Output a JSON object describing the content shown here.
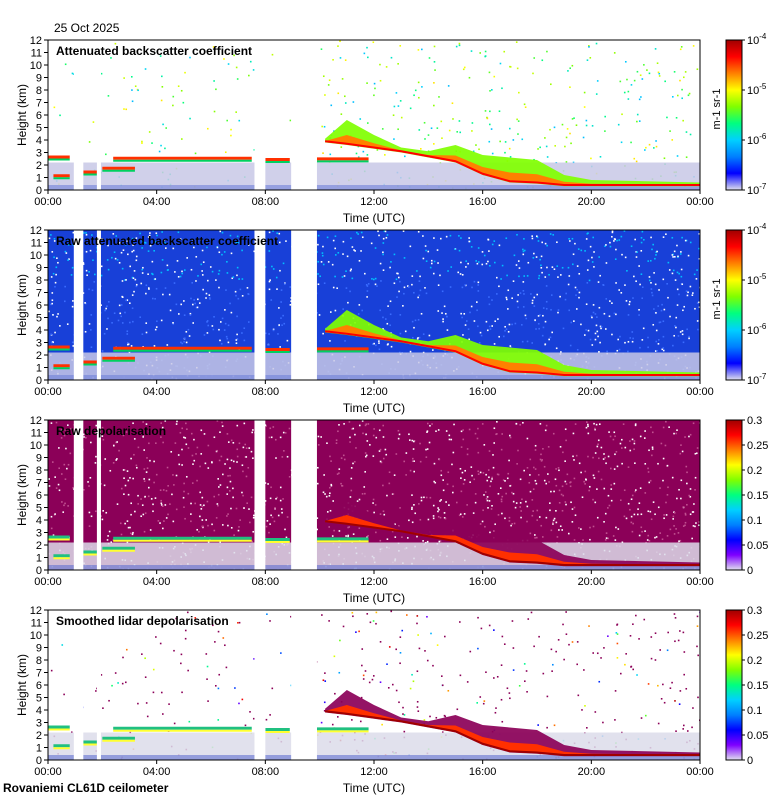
{
  "header": {
    "date": "25 Oct 2025",
    "site": "Rovaniemi CL61D ceilometer"
  },
  "chart_data": [
    {
      "type": "heatmap",
      "title": "Attenuated backscatter coefficient",
      "xlabel": "Time (UTC)",
      "ylabel": "Height (km)",
      "xticks": [
        "00:00",
        "04:00",
        "08:00",
        "12:00",
        "16:00",
        "20:00",
        "00:00"
      ],
      "yticks": [
        0,
        1,
        2,
        3,
        4,
        5,
        6,
        7,
        8,
        9,
        10,
        11,
        12
      ],
      "ylim": [
        0,
        12
      ],
      "colorbar": {
        "scale": "log",
        "ticks": [
          "10^-7",
          "10^-6",
          "10^-5",
          "10^-4"
        ],
        "units": "m-1 sr-1"
      },
      "gaps_hours": [
        [
          0.95,
          1.3
        ],
        [
          1.8,
          1.95
        ],
        [
          7.6,
          8.0
        ],
        [
          8.95,
          9.9
        ]
      ],
      "cloud_layers": [
        {
          "t0": 0.0,
          "t1": 0.8,
          "h_km": 2.6
        },
        {
          "t0": 0.2,
          "t1": 0.8,
          "h_km": 1.1
        },
        {
          "t0": 1.3,
          "t1": 1.8,
          "h_km": 1.4
        },
        {
          "t0": 2.0,
          "t1": 3.2,
          "h_km": 1.7
        },
        {
          "t0": 2.4,
          "t1": 7.5,
          "h_km": 2.5
        },
        {
          "t0": 8.0,
          "t1": 8.9,
          "h_km": 2.4
        },
        {
          "t0": 9.9,
          "t1": 11.8,
          "h_km": 2.45
        }
      ],
      "frontal_band": [
        {
          "t": 10.2,
          "base": 3.8,
          "top": 4.1
        },
        {
          "t": 11.0,
          "base": 3.6,
          "top": 5.6
        },
        {
          "t": 12.0,
          "base": 3.3,
          "top": 4.4
        },
        {
          "t": 13.0,
          "base": 3.0,
          "top": 3.4
        },
        {
          "t": 14.0,
          "base": 2.6,
          "top": 3.1
        },
        {
          "t": 15.0,
          "base": 2.2,
          "top": 3.6
        },
        {
          "t": 16.0,
          "base": 1.2,
          "top": 2.8
        },
        {
          "t": 17.0,
          "base": 0.6,
          "top": 2.6
        },
        {
          "t": 18.0,
          "base": 0.5,
          "top": 2.4
        },
        {
          "t": 19.0,
          "base": 0.3,
          "top": 1.2
        },
        {
          "t": 20.0,
          "base": 0.3,
          "top": 0.8
        },
        {
          "t": 22.0,
          "base": 0.3,
          "top": 0.7
        },
        {
          "t": 24.0,
          "base": 0.3,
          "top": 0.6
        }
      ]
    },
    {
      "type": "heatmap",
      "title": "Raw attenuated backscatter coefficient",
      "xlabel": "Time (UTC)",
      "ylabel": "Height (km)",
      "xticks": [
        "00:00",
        "04:00",
        "08:00",
        "12:00",
        "16:00",
        "20:00",
        "00:00"
      ],
      "yticks": [
        0,
        1,
        2,
        3,
        4,
        5,
        6,
        7,
        8,
        9,
        10,
        11,
        12
      ],
      "ylim": [
        0,
        12
      ],
      "colorbar": {
        "scale": "log",
        "ticks": [
          "10^-7",
          "10^-6",
          "10^-5",
          "10^-4"
        ],
        "units": "m-1 sr-1"
      }
    },
    {
      "type": "heatmap",
      "title": "Raw depolarisation",
      "xlabel": "Time (UTC)",
      "ylabel": "Height (km)",
      "xticks": [
        "00:00",
        "04:00",
        "08:00",
        "12:00",
        "16:00",
        "20:00",
        "00:00"
      ],
      "yticks": [
        0,
        1,
        2,
        3,
        4,
        5,
        6,
        7,
        8,
        9,
        10,
        11,
        12
      ],
      "ylim": [
        0,
        12
      ],
      "colorbar": {
        "scale": "linear",
        "ticks": [
          "0",
          "0.05",
          "0.1",
          "0.15",
          "0.2",
          "0.25",
          "0.3"
        ],
        "range": [
          0,
          0.3
        ]
      }
    },
    {
      "type": "heatmap",
      "title": "Smoothed lidar depolarisation",
      "xlabel": "Time (UTC)",
      "ylabel": "Height (km)",
      "xticks": [
        "00:00",
        "04:00",
        "08:00",
        "12:00",
        "16:00",
        "20:00",
        "00:00"
      ],
      "yticks": [
        0,
        1,
        2,
        3,
        4,
        5,
        6,
        7,
        8,
        9,
        10,
        11,
        12
      ],
      "ylim": [
        0,
        12
      ],
      "colorbar": {
        "scale": "linear",
        "ticks": [
          "0",
          "0.05",
          "0.1",
          "0.15",
          "0.2",
          "0.25",
          "0.3"
        ],
        "range": [
          0,
          0.3
        ]
      }
    }
  ],
  "colors": {
    "jet": [
      "#7f00ff",
      "#0000ff",
      "#0080ff",
      "#00d0ff",
      "#00ff80",
      "#80ff00",
      "#ffff00",
      "#ff8000",
      "#ff0000",
      "#a00000"
    ],
    "low": "#e0e0ee",
    "depol_high": "#8b0058"
  }
}
